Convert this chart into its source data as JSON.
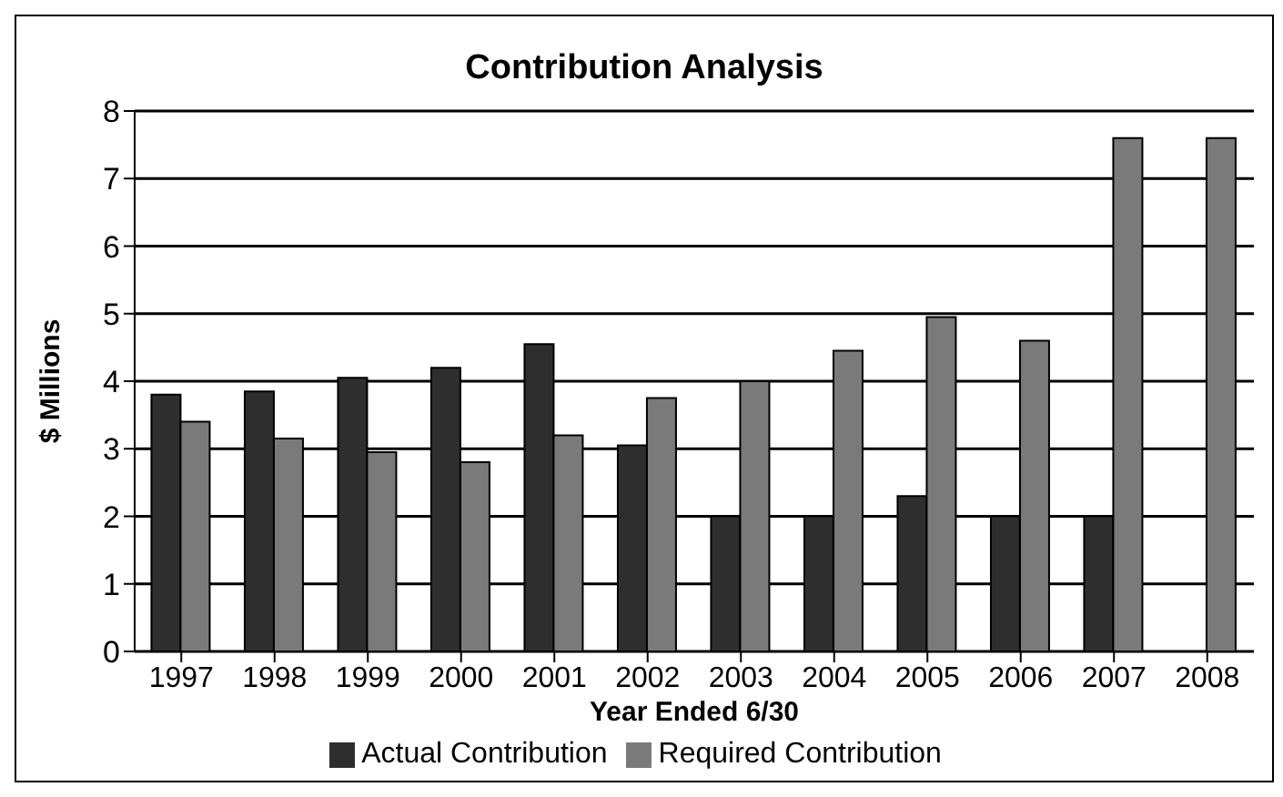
{
  "chart_data": {
    "type": "bar",
    "title": "Contribution Analysis",
    "xlabel": "Year Ended 6/30",
    "ylabel": "$ Millions",
    "categories": [
      "1997",
      "1998",
      "1999",
      "2000",
      "2001",
      "2002",
      "2003",
      "2004",
      "2005",
      "2006",
      "2007",
      "2008"
    ],
    "series": [
      {
        "name": "Actual Contribution",
        "color": "#2e2e2e",
        "values": [
          3.8,
          3.85,
          4.05,
          4.2,
          4.55,
          3.05,
          2,
          2,
          2.3,
          2,
          2,
          null
        ]
      },
      {
        "name": "Required Contribution",
        "color": "#7a7a7a",
        "values": [
          3.4,
          3.15,
          2.95,
          2.8,
          3.2,
          3.75,
          4,
          4.45,
          4.95,
          4.6,
          7.6,
          7.6
        ]
      }
    ],
    "ylim": [
      0,
      8
    ],
    "yticks": [
      0,
      1,
      2,
      3,
      4,
      5,
      6,
      7,
      8
    ],
    "grid": "y",
    "legend": "bottom"
  }
}
